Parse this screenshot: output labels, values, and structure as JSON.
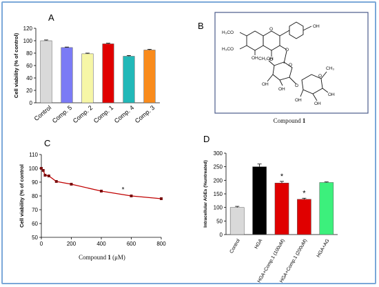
{
  "colors": {
    "frame": "#7aa7d8",
    "panel_b_border": "#4a5a8a",
    "line": "#c00000"
  },
  "panels": {
    "a": {
      "letter": "A"
    },
    "b": {
      "letter": "B",
      "caption_prefix": "Compound ",
      "caption_bold": "1",
      "structure_labels": [
        "H₃CO",
        "H₃CO",
        "O",
        "OH",
        "OH",
        "O",
        "O",
        "CH₂OH",
        "O",
        "O",
        "OH",
        "OH",
        "CH₃",
        "OH",
        "OH",
        "O",
        "OH"
      ]
    },
    "c": {
      "letter": "C",
      "xlabel_prefix": "Compound ",
      "xlabel_bold": "1",
      "xlabel_suffix": " (μM)"
    },
    "d": {
      "letter": "D"
    }
  },
  "chart_data": [
    {
      "id": "A",
      "type": "bar",
      "ylabel": "Cell viability (% of control)",
      "ylim": [
        0,
        120
      ],
      "yticks": [
        0,
        20,
        40,
        60,
        80,
        100,
        120
      ],
      "categories": [
        "Control",
        "Comp. 5",
        "Comp. 2",
        "Comp. 1",
        "Comp. 4",
        "Comp. 3"
      ],
      "values": [
        100,
        89,
        79,
        95,
        75,
        85
      ],
      "errors": [
        1.2,
        0.8,
        1.0,
        1.0,
        1.2,
        1.2
      ],
      "colors": [
        "#d9d9d9",
        "#7b7bf5",
        "#f6f6a6",
        "#e00000",
        "#22b8b8",
        "#f98b1c"
      ],
      "grid": false
    },
    {
      "id": "C",
      "type": "line",
      "ylabel": "Cell viability (% of control",
      "xlim": [
        0,
        800
      ],
      "ylim": [
        50,
        110
      ],
      "xticks": [
        0,
        200,
        400,
        600,
        800
      ],
      "yticks": [
        50,
        60,
        70,
        80,
        90,
        100,
        110
      ],
      "x": [
        0,
        12.5,
        25,
        50,
        100,
        200,
        400,
        600,
        800
      ],
      "y": [
        100,
        98.5,
        95,
        94.5,
        90.5,
        88.5,
        83.5,
        80,
        78
      ],
      "annotations": [
        {
          "text": "*",
          "x": 545,
          "y": 83
        }
      ],
      "grid": false
    },
    {
      "id": "D",
      "type": "bar",
      "ylabel": "Intracellular AGEs (%untreated)",
      "ylim": [
        0,
        300
      ],
      "yticks": [
        0,
        50,
        100,
        150,
        200,
        250,
        300
      ],
      "categories": [
        "Control",
        "HGA",
        "HGA+Comp.1 (100uM)",
        "HGA+Comp.1 (200uM)",
        "HGA+AG"
      ],
      "values": [
        100,
        250,
        190,
        130,
        192
      ],
      "errors": [
        4,
        10,
        6,
        4,
        2
      ],
      "colors": [
        "#d9d9d9",
        "#000000",
        "#e00000",
        "#e00000",
        "#3cf07c"
      ],
      "significance": [
        "",
        "",
        "*",
        "*",
        ""
      ],
      "grid": false
    }
  ]
}
